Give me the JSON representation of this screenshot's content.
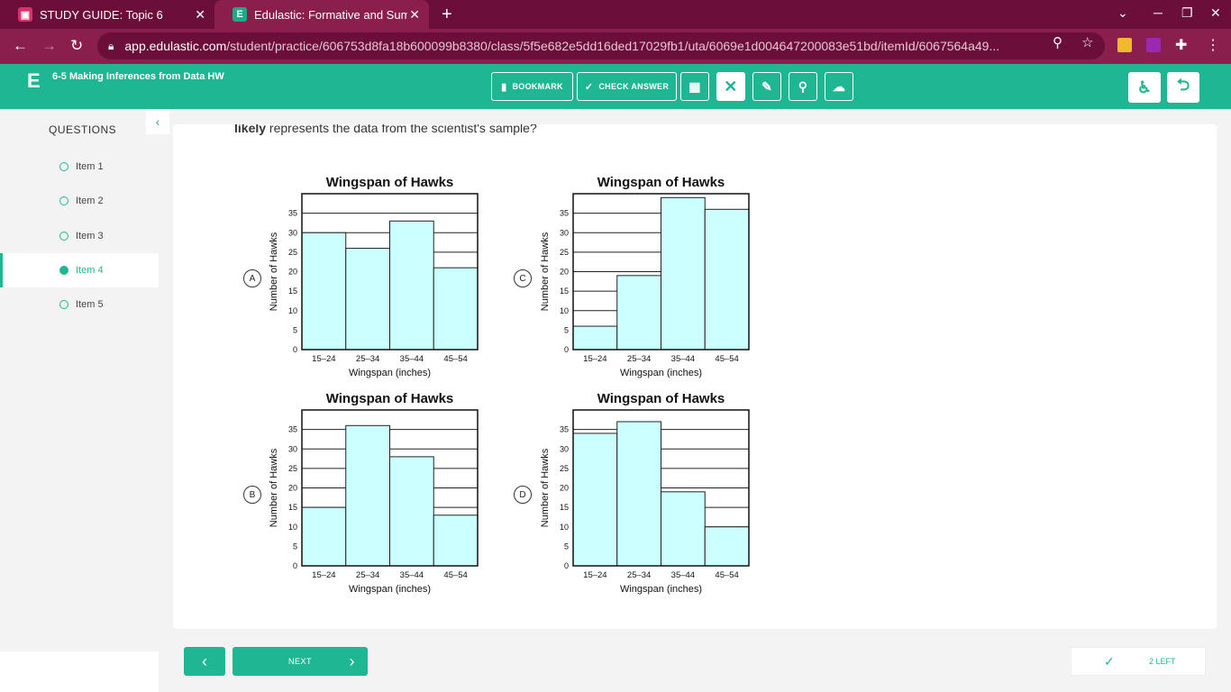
{
  "browser": {
    "tabs": [
      {
        "title": "STUDY GUIDE: Topic 6",
        "favicon": "slides-icon"
      },
      {
        "title": "Edulastic: Formative and Summ",
        "favicon": "edulastic-icon"
      }
    ],
    "url_host": "app.edulastic.com",
    "url_path": "/student/practice/606753d8fa18b600099b8380/class/5f5e682e5dd16ded17029fb1/uta/6069e1d004647200083e51bd/itemId/6067564a49..."
  },
  "header": {
    "logo": "E",
    "assignment_title": "6-5 Making Inferences from Data HW",
    "bookmark_label": "BOOKMARK",
    "check_answer_label": "CHECK ANSWER"
  },
  "sidebar": {
    "heading": "QUESTIONS",
    "items": [
      {
        "label": "Item 1",
        "active": false
      },
      {
        "label": "Item 2",
        "active": false
      },
      {
        "label": "Item 3",
        "active": false
      },
      {
        "label": "Item 4",
        "active": true
      },
      {
        "label": "Item 5",
        "active": false
      }
    ]
  },
  "question": {
    "text_bold": "likely",
    "text_rest": " represents the data from the scientist's sample?"
  },
  "options": [
    "A",
    "B",
    "C",
    "D"
  ],
  "chart_data": [
    {
      "option": "A",
      "type": "bar",
      "title": "Wingspan of Hawks",
      "xlabel": "Wingspan (inches)",
      "ylabel": "Number of Hawks",
      "categories": [
        "15–24",
        "25–34",
        "35–44",
        "45–54"
      ],
      "values": [
        30,
        26,
        33,
        21
      ],
      "yticks": [
        0,
        5,
        10,
        15,
        20,
        25,
        30,
        35
      ],
      "ylim": [
        0,
        40
      ]
    },
    {
      "option": "C",
      "type": "bar",
      "title": "Wingspan of Hawks",
      "xlabel": "Wingspan (inches)",
      "ylabel": "Number of Hawks",
      "categories": [
        "15–24",
        "25–34",
        "35–44",
        "45–54"
      ],
      "values": [
        6,
        19,
        39,
        36
      ],
      "yticks": [
        0,
        5,
        10,
        15,
        20,
        25,
        30,
        35
      ],
      "ylim": [
        0,
        40
      ]
    },
    {
      "option": "B",
      "type": "bar",
      "title": "Wingspan of Hawks",
      "xlabel": "Wingspan (inches)",
      "ylabel": "Number of Hawks",
      "categories": [
        "15–24",
        "25–34",
        "35–44",
        "45–54"
      ],
      "values": [
        15,
        36,
        28,
        13
      ],
      "yticks": [
        0,
        5,
        10,
        15,
        20,
        25,
        30,
        35
      ],
      "ylim": [
        0,
        40
      ]
    },
    {
      "option": "D",
      "type": "bar",
      "title": "Wingspan of Hawks",
      "xlabel": "Wingspan (inches)",
      "ylabel": "Number of Hawks",
      "categories": [
        "15–24",
        "25–34",
        "35–44",
        "45–54"
      ],
      "values": [
        34,
        37,
        19,
        10
      ],
      "yticks": [
        0,
        5,
        10,
        15,
        20,
        25,
        30,
        35
      ],
      "ylim": [
        0,
        40
      ]
    }
  ],
  "footer": {
    "next_label": "NEXT",
    "remaining_label": "2 LEFT"
  },
  "colors": {
    "accent": "#1fb793",
    "browser": "#8a1e4c",
    "bar_fill": "#ccffff"
  }
}
